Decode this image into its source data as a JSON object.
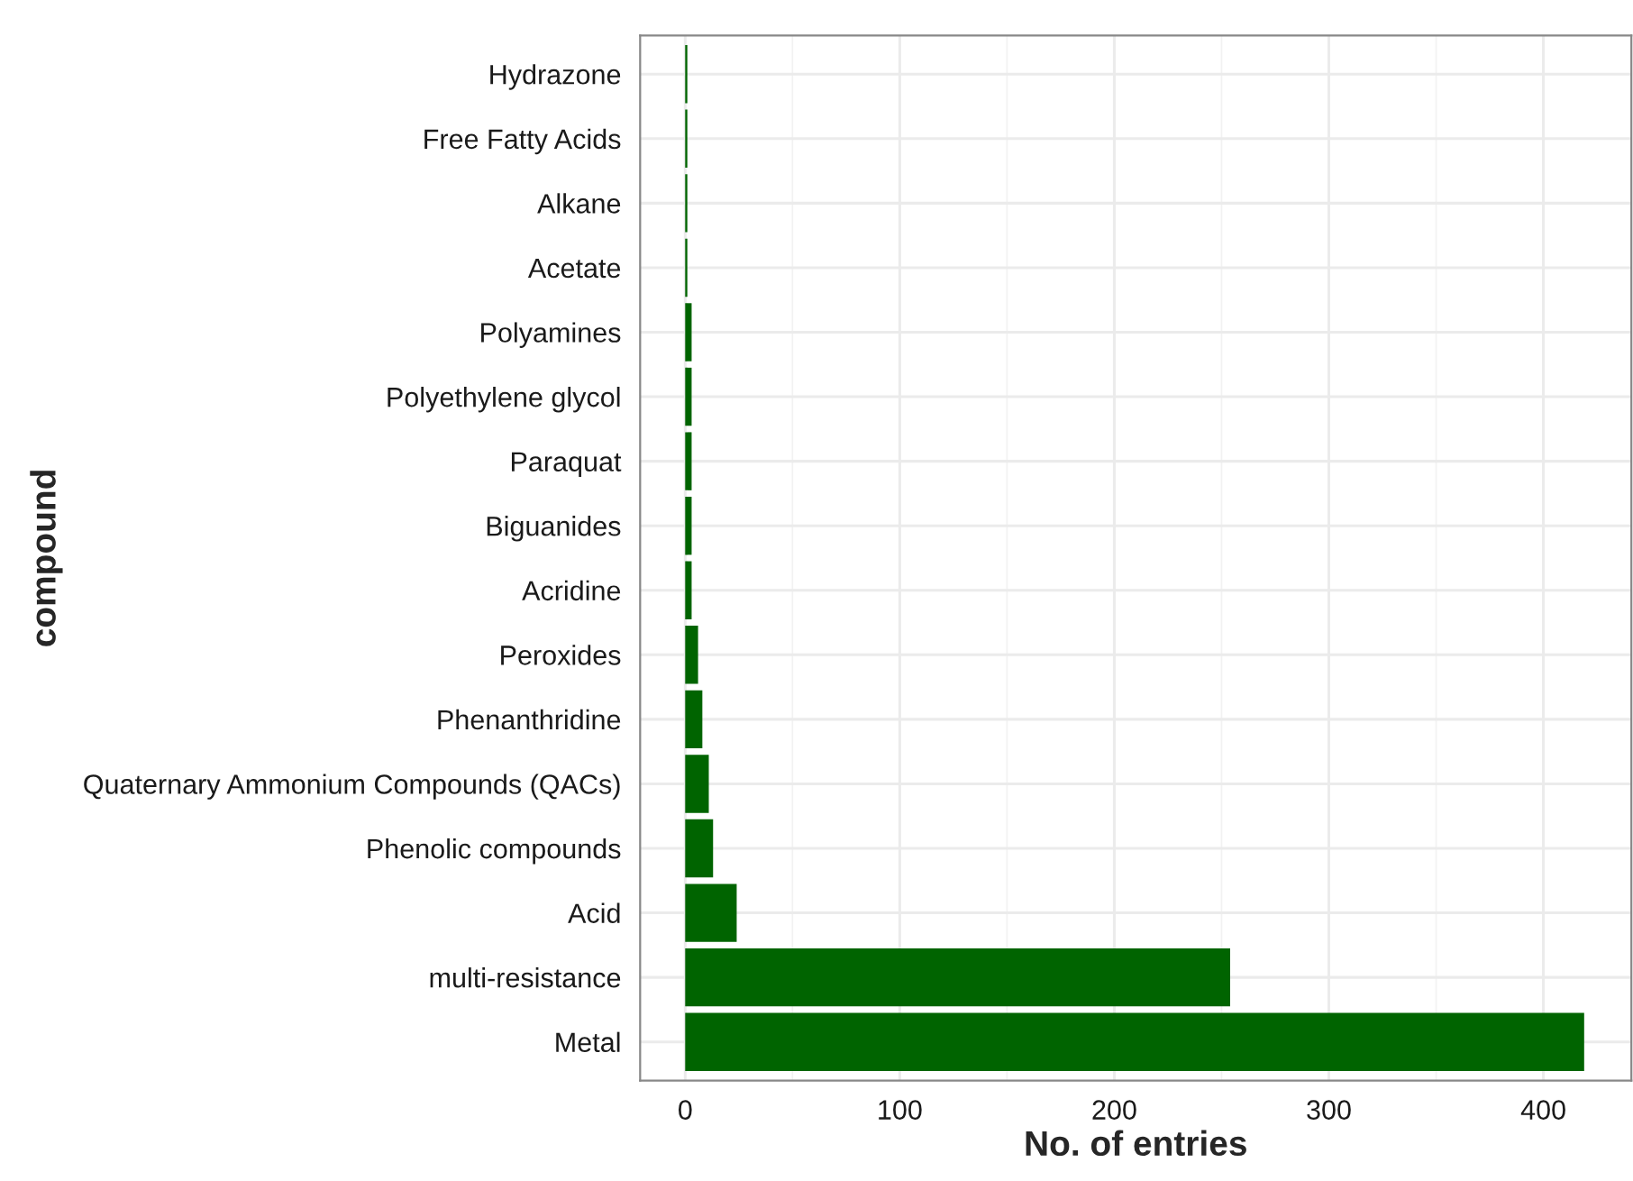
{
  "chart_data": {
    "type": "bar",
    "orientation": "horizontal",
    "xlabel": "No. of entries",
    "ylabel": "compound",
    "categories": [
      "Hydrazone",
      "Free Fatty Acids",
      "Alkane",
      "Acetate",
      "Polyamines",
      "Polyethylene glycol",
      "Paraquat",
      "Biguanides",
      "Acridine",
      "Peroxides",
      "Phenanthridine",
      "Quaternary Ammonium Compounds (QACs)",
      "Phenolic compounds",
      "Acid",
      "multi-resistance",
      "Metal"
    ],
    "values": [
      1,
      1,
      1,
      1,
      3,
      3,
      3,
      3,
      3,
      6,
      8,
      11,
      13,
      24,
      254,
      419
    ],
    "color": "#006400",
    "xlim": [
      -21,
      441
    ],
    "xticks": [
      0,
      100,
      200,
      300,
      400
    ],
    "grid": true
  }
}
